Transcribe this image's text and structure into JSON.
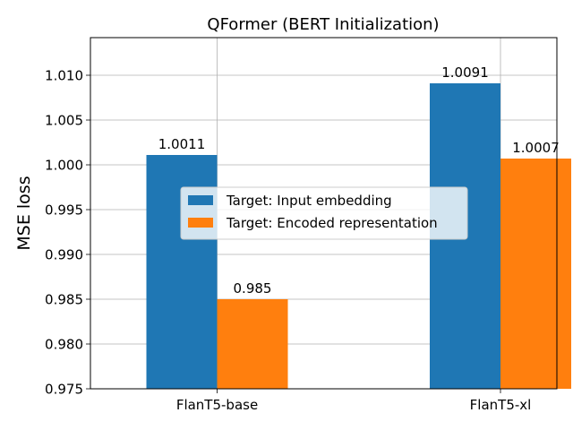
{
  "chart_data": {
    "type": "bar",
    "title": "QFormer (BERT Initialization)",
    "xlabel": "",
    "ylabel": "MSE loss",
    "categories": [
      "FlanT5-base",
      "FlanT5-xl"
    ],
    "series": [
      {
        "name": "Target: Input embedding",
        "values": [
          1.0011,
          1.0091
        ],
        "labels": [
          "1.0011",
          "1.0091"
        ],
        "color": "#1f77b4"
      },
      {
        "name": "Target: Encoded representation",
        "values": [
          0.985,
          1.0007
        ],
        "labels": [
          "0.985",
          "1.0007"
        ],
        "color": "#ff7f0e"
      }
    ],
    "ylim": [
      0.975,
      1.0142
    ],
    "yticks": [
      0.975,
      0.98,
      0.985,
      0.99,
      0.995,
      1.0,
      1.005,
      1.01
    ],
    "ytick_labels": [
      "0.975",
      "0.980",
      "0.985",
      "0.990",
      "0.995",
      "1.000",
      "1.005",
      "1.010"
    ],
    "grid": true,
    "legend_position": "center"
  }
}
